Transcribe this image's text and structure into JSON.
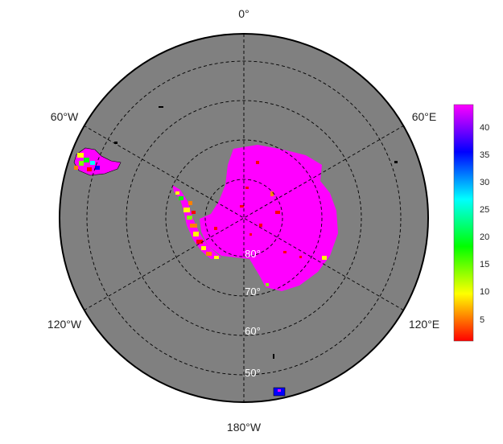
{
  "map": {
    "projection": "south-polar-stereographic",
    "ocean_color": "#808080",
    "background": "#ffffff",
    "lon_labels": [
      "0°",
      "60°E",
      "120°E",
      "180°W",
      "120°W",
      "60°W"
    ],
    "lat_labels": [
      "80°",
      "70°",
      "60°",
      "50°"
    ],
    "graticule": "dashed"
  },
  "colorbar": {
    "ticks": [
      "40",
      "35",
      "30",
      "25",
      "20",
      "15",
      "10",
      "5"
    ],
    "range": [
      1,
      44
    ],
    "colors": [
      "#ff0000",
      "#ff8000",
      "#ffff00",
      "#80ff00",
      "#00ff00",
      "#00ff80",
      "#00ffff",
      "#0080ff",
      "#0000ff",
      "#8000ff",
      "#ff00ff"
    ]
  }
}
